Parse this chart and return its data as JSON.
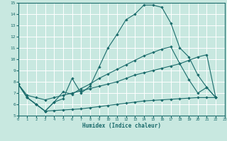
{
  "xlabel": "Humidex (Indice chaleur)",
  "xlim": [
    0,
    23
  ],
  "ylim": [
    5,
    15
  ],
  "xticks": [
    0,
    1,
    2,
    3,
    4,
    5,
    6,
    7,
    8,
    9,
    10,
    11,
    12,
    13,
    14,
    15,
    16,
    17,
    18,
    19,
    20,
    21,
    22,
    23
  ],
  "yticks": [
    5,
    6,
    7,
    8,
    9,
    10,
    11,
    12,
    13,
    14,
    15
  ],
  "bg_color": "#c8e8e0",
  "line_color": "#1a6b6b",
  "line1_x": [
    0,
    1,
    2,
    3,
    4,
    5,
    6,
    7,
    8,
    9,
    10,
    11,
    12,
    13,
    14,
    15,
    16,
    17,
    18,
    19,
    20,
    21,
    22
  ],
  "line1_y": [
    7.8,
    6.6,
    6.0,
    5.4,
    6.2,
    6.5,
    8.3,
    7.0,
    7.6,
    9.3,
    11.0,
    12.2,
    13.5,
    14.0,
    14.8,
    14.8,
    14.6,
    13.2,
    11.0,
    10.2,
    8.6,
    7.5,
    6.6
  ],
  "line2_x": [
    0,
    1,
    2,
    3,
    4,
    5,
    6,
    7,
    8,
    9,
    10,
    11,
    12,
    13,
    14,
    15,
    16,
    17,
    18,
    19,
    20,
    21,
    22
  ],
  "line2_y": [
    7.8,
    6.8,
    6.6,
    6.4,
    6.6,
    6.8,
    7.0,
    7.2,
    7.4,
    7.6,
    7.8,
    8.0,
    8.3,
    8.6,
    8.8,
    9.0,
    9.2,
    9.4,
    9.6,
    9.9,
    10.2,
    10.4,
    6.6
  ],
  "line3_x": [
    0,
    1,
    2,
    3,
    4,
    5,
    6,
    7,
    8,
    9,
    10,
    11,
    12,
    13,
    14,
    15,
    16,
    17,
    18,
    19,
    20,
    21,
    22
  ],
  "line3_y": [
    7.8,
    6.6,
    6.0,
    5.4,
    5.45,
    5.5,
    5.55,
    5.6,
    5.7,
    5.8,
    5.9,
    6.0,
    6.1,
    6.2,
    6.3,
    6.35,
    6.4,
    6.45,
    6.5,
    6.55,
    6.6,
    6.6,
    6.6
  ],
  "line4_x": [
    0,
    1,
    2,
    3,
    4,
    5,
    6,
    7,
    8,
    9,
    10,
    11,
    12,
    13,
    14,
    15,
    16,
    17,
    18,
    19,
    20,
    21,
    22
  ],
  "line4_y": [
    7.8,
    6.6,
    6.0,
    5.4,
    6.2,
    7.1,
    6.9,
    7.4,
    7.8,
    8.3,
    8.7,
    9.1,
    9.5,
    9.9,
    10.3,
    10.6,
    10.9,
    11.1,
    9.6,
    8.2,
    7.0,
    7.5,
    6.6
  ]
}
